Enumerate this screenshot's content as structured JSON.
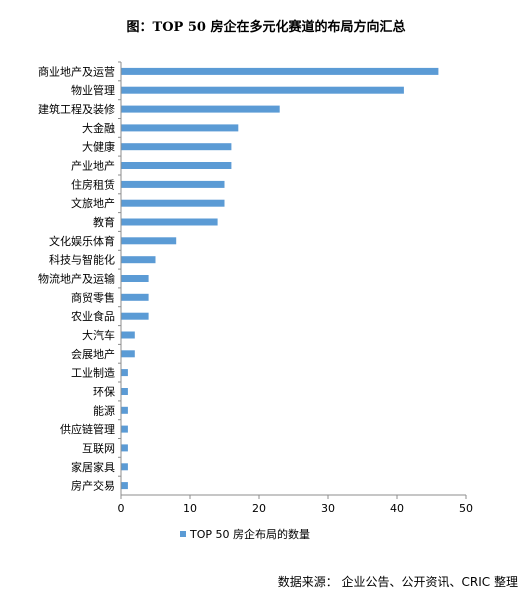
{
  "title": "图：TOP 50 房企在多元化赛道的布局方向汇总",
  "source": "数据来源：  企业公告、公开资讯、CRIC 整理",
  "colors": {
    "bar": "#5b9bd5",
    "axis": "#8c8c8c"
  },
  "chart_data": {
    "type": "bar",
    "orientation": "horizontal",
    "categories": [
      "商业地产及运营",
      "物业管理",
      "建筑工程及装修",
      "大金融",
      "大健康",
      "产业地产",
      "住房租赁",
      "文旅地产",
      "教育",
      "文化娱乐体育",
      "科技与智能化",
      "物流地产及运输",
      "商贸零售",
      "农业食品",
      "大汽车",
      "会展地产",
      "工业制造",
      "环保",
      "能源",
      "供应链管理",
      "互联网",
      "家居家具",
      "房产交易"
    ],
    "series": [
      {
        "name": "TOP 50 房企布局的数量",
        "values": [
          46,
          41,
          23,
          17,
          16,
          16,
          15,
          15,
          14,
          8,
          5,
          4,
          4,
          4,
          2,
          2,
          1,
          1,
          1,
          1,
          1,
          1,
          1
        ]
      }
    ],
    "xlim": [
      0,
      50
    ],
    "xticks": [
      0,
      10,
      20,
      30,
      40,
      50
    ],
    "grid": false,
    "legend": "bottom"
  }
}
